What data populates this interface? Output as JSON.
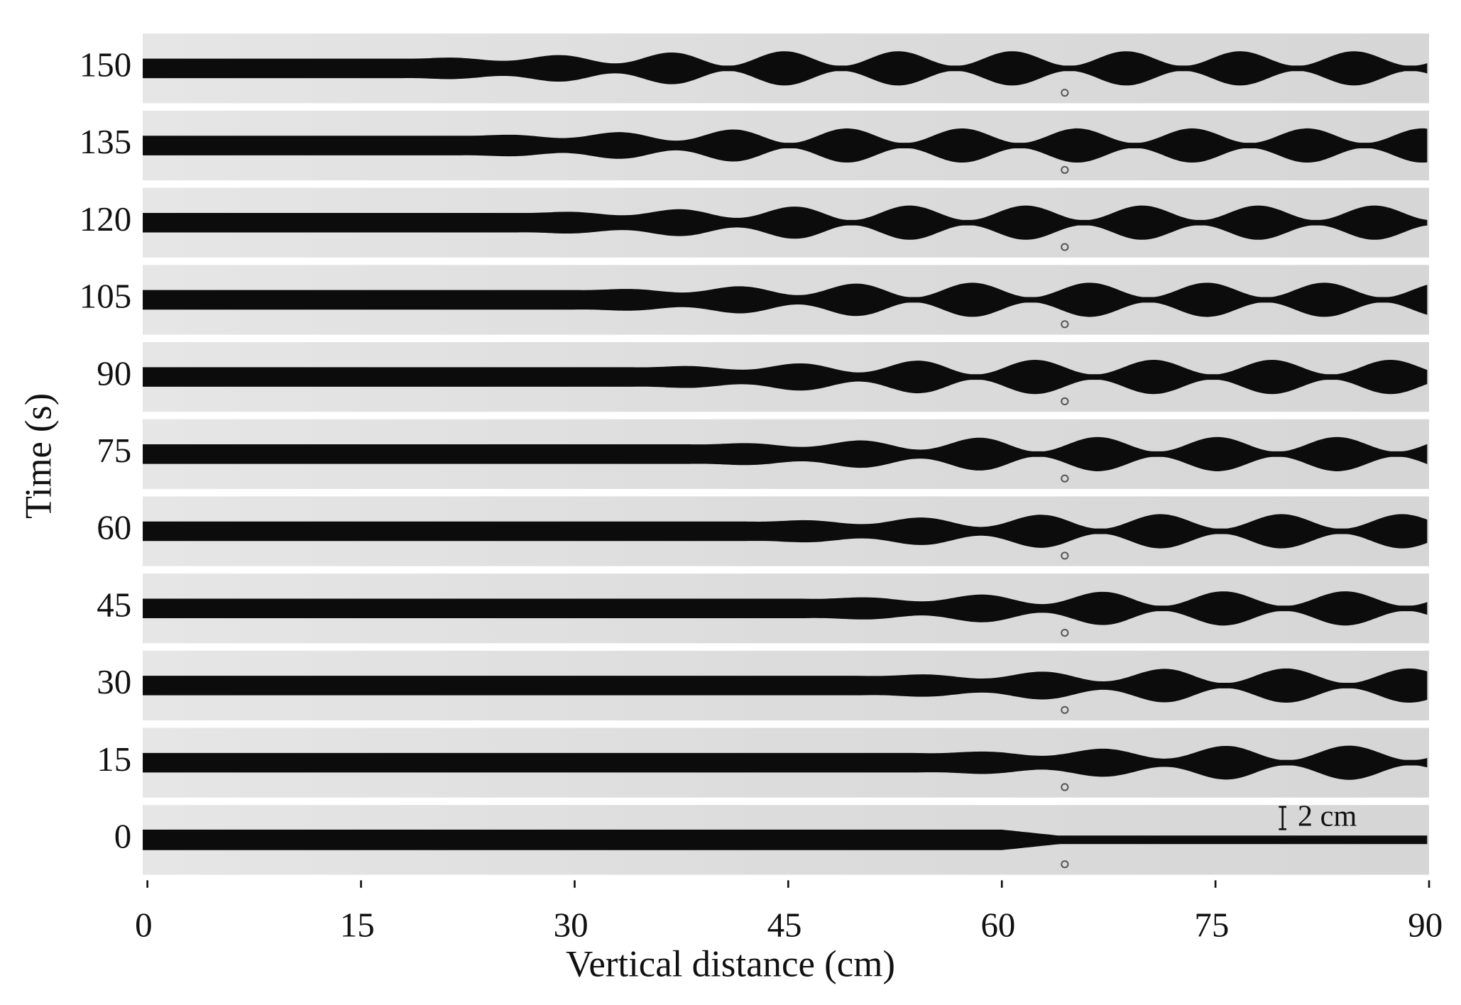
{
  "chart_data": {
    "type": "strips",
    "xlabel": "Vertical distance (cm)",
    "ylabel": "Time (s)",
    "xlim": [
      0,
      90
    ],
    "xticks": [
      0,
      15,
      30,
      45,
      60,
      75,
      90
    ],
    "categories": [
      "0",
      "15",
      "30",
      "45",
      "60",
      "75",
      "90",
      "105",
      "120",
      "135",
      "150"
    ],
    "scale_bar": "2 cm"
  }
}
